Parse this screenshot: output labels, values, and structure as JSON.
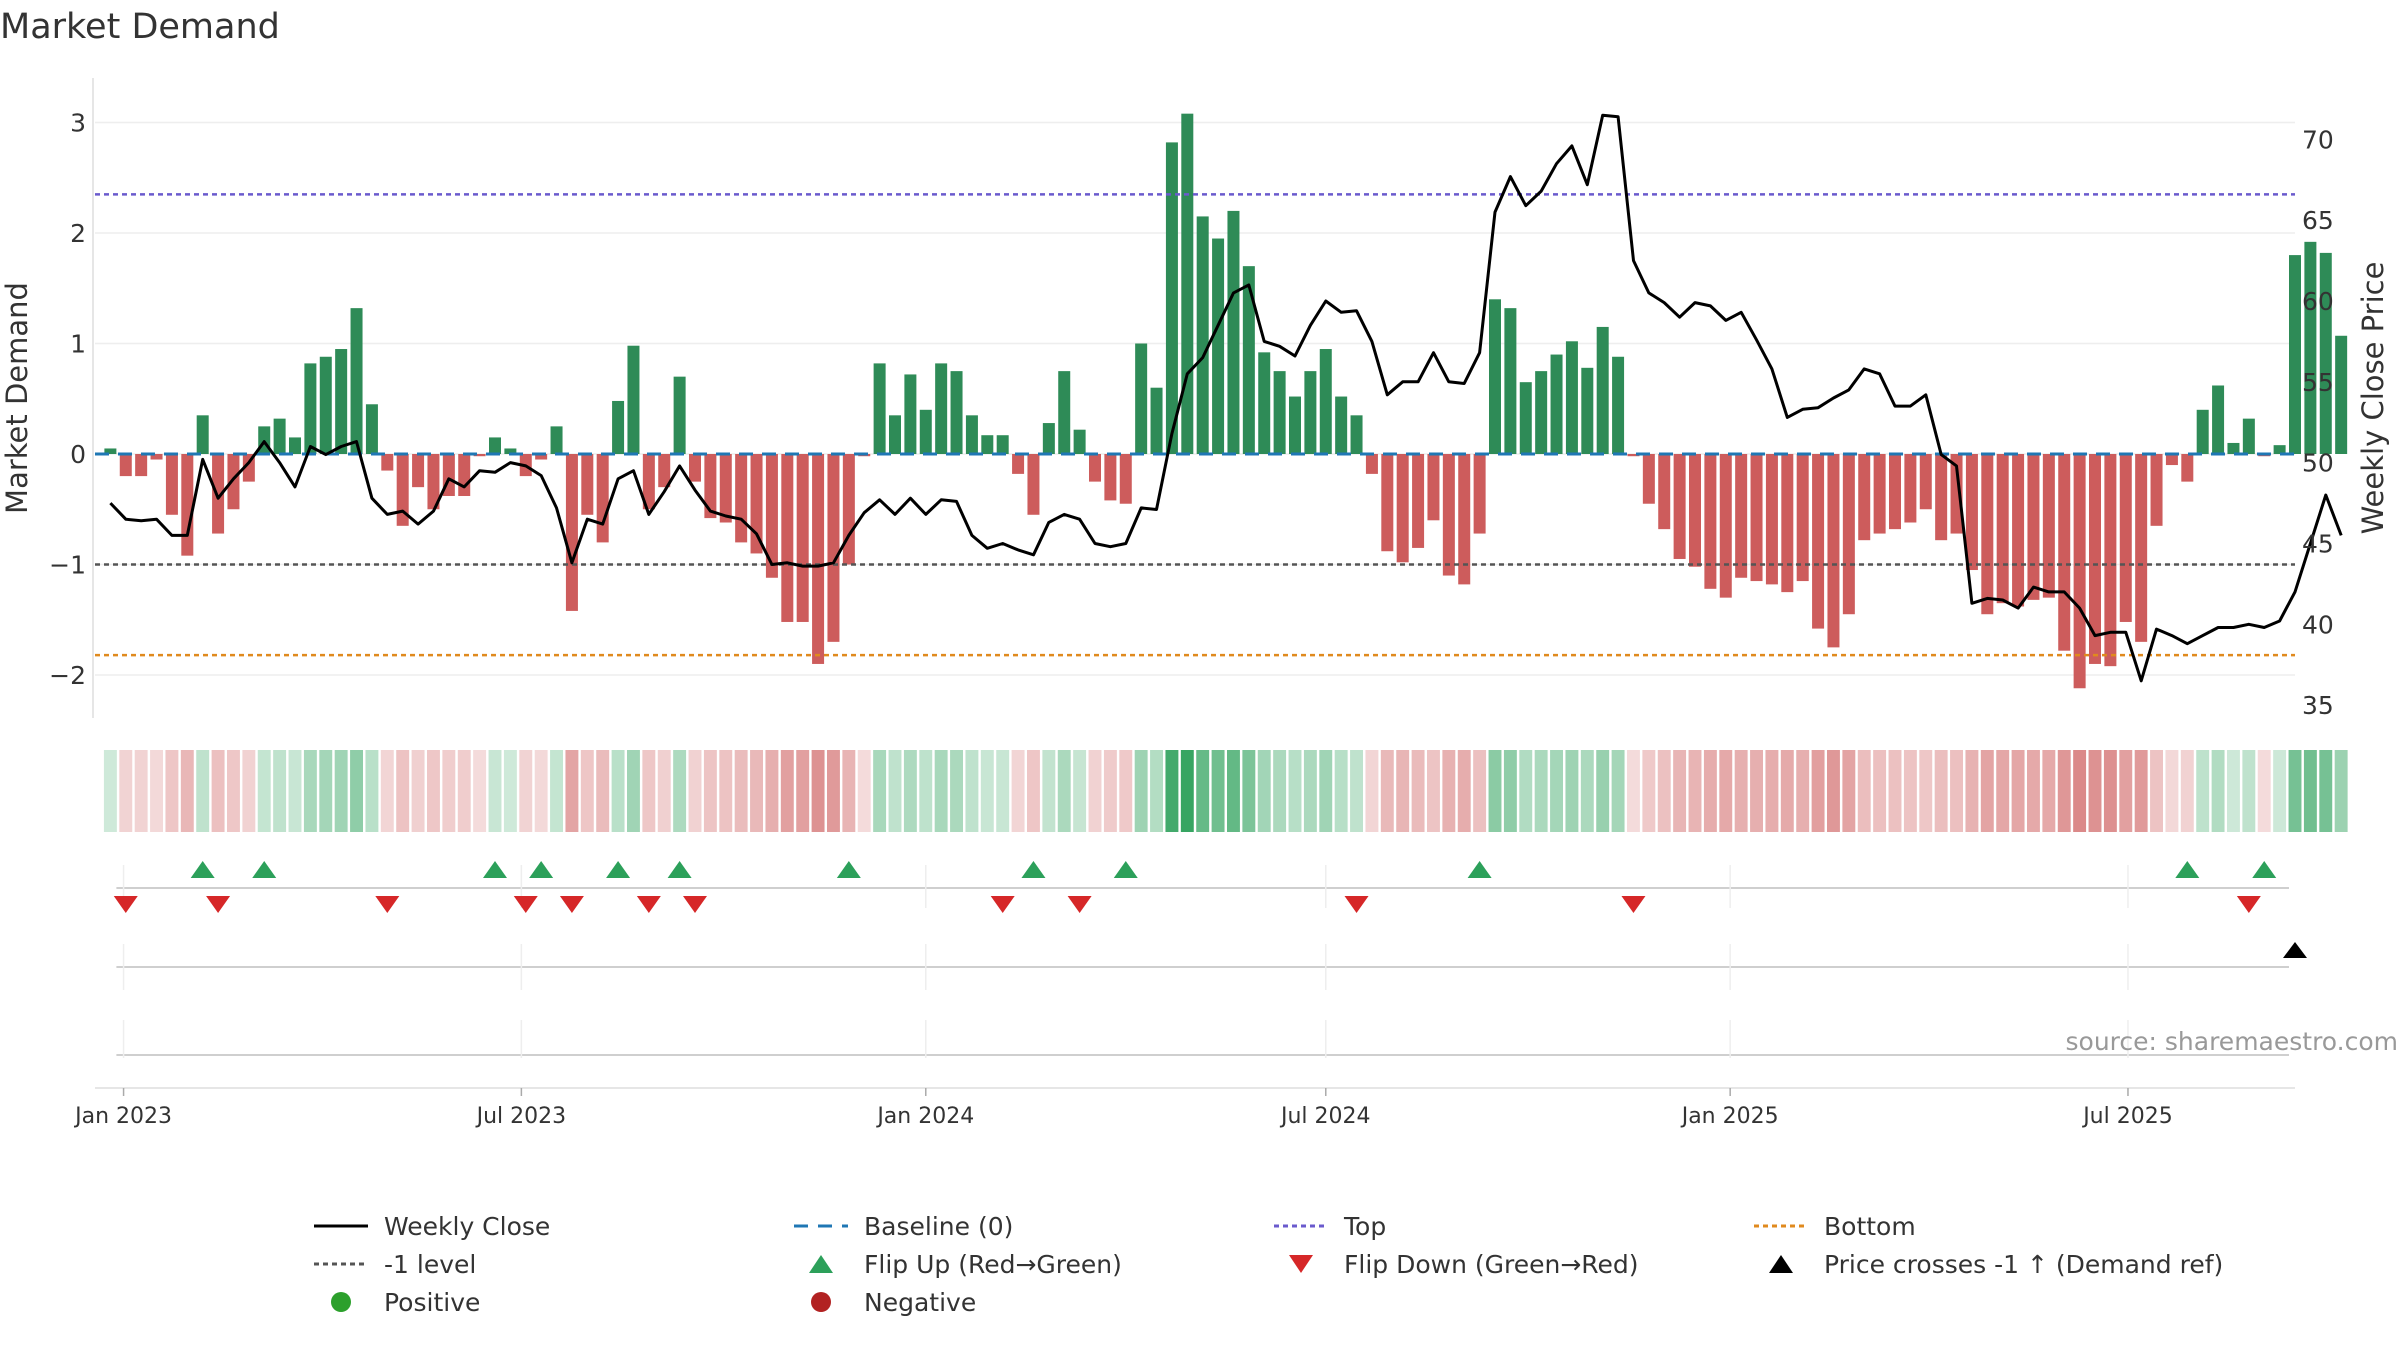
{
  "title": "Market Demand",
  "source": "source: sharemaestro.com",
  "colors": {
    "positive": "#2e8b57",
    "negative": "#cd5c5c",
    "price": "#000000",
    "baseline": "#1f77b4",
    "top": "#6a5acd",
    "bottom": "#e08a1e",
    "minus1": "#555555",
    "flip_up": "#2ca05a",
    "flip_down": "#d62728",
    "cross": "#000000",
    "dot_pos": "#2ca02c",
    "dot_neg": "#b22222"
  },
  "chart_data": {
    "type": "bar",
    "title": "Market Demand",
    "ylabel": "Market Demand",
    "y2label": "Weekly Close Price",
    "ylim": [
      -2.4,
      3.35
    ],
    "y2lim": [
      34.2,
      73.8
    ],
    "yticks": [
      -2,
      -1,
      0,
      1,
      2,
      3
    ],
    "y2ticks": [
      35,
      40,
      45,
      50,
      55,
      60,
      65,
      70
    ],
    "x_start": "2022-12-19",
    "x_end": "2025-09-15",
    "first_week": "2022-12-26",
    "xticks": [
      {
        "label": "Jan 2023",
        "date": "2023-01-01"
      },
      {
        "label": "Jul 2023",
        "date": "2023-07-01"
      },
      {
        "label": "Jan 2024",
        "date": "2024-01-01"
      },
      {
        "label": "Jul 2024",
        "date": "2024-07-01"
      },
      {
        "label": "Jan 2025",
        "date": "2025-01-01"
      },
      {
        "label": "Jul 2025",
        "date": "2025-07-01"
      }
    ],
    "reference_lines": {
      "baseline": 0,
      "top": 2.35,
      "bottom": -1.82,
      "minus_one": -1
    },
    "demand": [
      0.05,
      -0.2,
      -0.2,
      -0.05,
      -0.55,
      -0.92,
      0.35,
      -0.72,
      -0.5,
      -0.25,
      0.25,
      0.32,
      0.15,
      0.82,
      0.88,
      0.95,
      1.32,
      0.45,
      -0.15,
      -0.65,
      -0.3,
      -0.5,
      -0.38,
      -0.38,
      -0.02,
      0.15,
      0.05,
      -0.2,
      -0.05,
      0.25,
      -1.42,
      -0.55,
      -0.8,
      0.48,
      0.98,
      -0.5,
      -0.3,
      0.7,
      -0.25,
      -0.58,
      -0.62,
      -0.8,
      -0.9,
      -1.12,
      -1.52,
      -1.52,
      -1.9,
      -1.7,
      -1.0,
      -0.02,
      0.82,
      0.35,
      0.72,
      0.4,
      0.82,
      0.75,
      0.35,
      0.17,
      0.17,
      -0.18,
      -0.55,
      0.28,
      0.75,
      0.22,
      -0.25,
      -0.42,
      -0.45,
      1.0,
      0.6,
      2.82,
      3.08,
      2.15,
      1.95,
      2.2,
      1.7,
      0.92,
      0.75,
      0.52,
      0.75,
      0.95,
      0.52,
      0.35,
      -0.18,
      -0.88,
      -0.98,
      -0.85,
      -0.6,
      -1.1,
      -1.18,
      -0.72,
      1.4,
      1.32,
      0.65,
      0.75,
      0.9,
      1.02,
      0.78,
      1.15,
      0.88,
      -0.02,
      -0.45,
      -0.68,
      -0.95,
      -1.02,
      -1.22,
      -1.3,
      -1.12,
      -1.15,
      -1.18,
      -1.25,
      -1.15,
      -1.58,
      -1.75,
      -1.45,
      -0.78,
      -0.72,
      -0.68,
      -0.62,
      -0.5,
      -0.78,
      -0.72,
      -1.05,
      -1.45,
      -1.35,
      -1.38,
      -1.32,
      -1.3,
      -1.78,
      -2.12,
      -1.9,
      -1.92,
      -1.52,
      -1.7,
      -0.65,
      -0.1,
      -0.25,
      0.4,
      0.62,
      0.1,
      0.32,
      -0.02,
      0.08,
      1.8,
      1.92,
      1.82,
      1.07
    ],
    "price": [
      47.5,
      46.5,
      46.4,
      46.5,
      45.5,
      45.5,
      50.2,
      47.8,
      49.0,
      50.0,
      51.3,
      50.0,
      48.5,
      51.0,
      50.5,
      51.0,
      51.3,
      47.8,
      46.8,
      47.0,
      46.2,
      47.0,
      49.0,
      48.5,
      49.5,
      49.4,
      50.0,
      49.8,
      49.2,
      47.2,
      43.8,
      46.5,
      46.2,
      49.0,
      49.5,
      46.8,
      48.2,
      49.8,
      48.3,
      47.0,
      46.7,
      46.5,
      45.6,
      43.7,
      43.8,
      43.6,
      43.6,
      43.8,
      45.5,
      46.9,
      47.7,
      46.8,
      47.8,
      46.8,
      47.7,
      47.6,
      45.5,
      44.7,
      45.0,
      44.6,
      44.3,
      46.3,
      46.8,
      46.5,
      45.0,
      44.8,
      45.0,
      47.2,
      47.1,
      51.8,
      55.5,
      56.5,
      58.5,
      60.5,
      61.0,
      57.5,
      57.2,
      56.6,
      58.5,
      60.0,
      59.3,
      59.4,
      57.5,
      54.2,
      55.0,
      55.0,
      56.8,
      55.0,
      54.9,
      56.8,
      65.5,
      67.7,
      65.9,
      66.8,
      68.5,
      69.6,
      67.2,
      71.5,
      71.4,
      62.5,
      60.5,
      59.9,
      59.0,
      59.9,
      59.7,
      58.8,
      59.3,
      57.6,
      55.8,
      52.8,
      53.3,
      53.4,
      54.0,
      54.5,
      55.8,
      55.5,
      53.5,
      53.5,
      54.2,
      50.5,
      49.8,
      41.3,
      41.6,
      41.5,
      41.0,
      42.3,
      42.0,
      42.0,
      41.0,
      39.3,
      39.5,
      39.5,
      36.5,
      39.7,
      39.3,
      38.8,
      39.3,
      39.8,
      39.8,
      40.0,
      39.8,
      40.2,
      42.0,
      45.0,
      48.0,
      45.5
    ],
    "flip_up": [
      6,
      10,
      25,
      28,
      33,
      37,
      48,
      60,
      66,
      89,
      135,
      140
    ],
    "flip_down": [
      1,
      7,
      18,
      27,
      30,
      35,
      38,
      58,
      63,
      81,
      99,
      139
    ],
    "price_cross_up": [
      142
    ]
  },
  "legend": [
    {
      "key": "weekly_close",
      "label": "Weekly Close"
    },
    {
      "key": "baseline",
      "label": "Baseline (0)"
    },
    {
      "key": "top",
      "label": "Top"
    },
    {
      "key": "bottom",
      "label": "Bottom"
    },
    {
      "key": "minus1",
      "label": "-1 level"
    },
    {
      "key": "flip_up",
      "label": "Flip Up (Red→Green)"
    },
    {
      "key": "flip_down",
      "label": "Flip Down (Green→Red)"
    },
    {
      "key": "cross",
      "label": "Price crosses -1 ↑ (Demand ref)"
    },
    {
      "key": "positive",
      "label": "Positive"
    },
    {
      "key": "negative",
      "label": "Negative"
    }
  ]
}
